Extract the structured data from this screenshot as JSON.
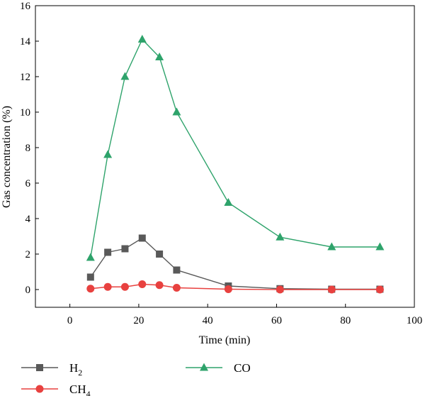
{
  "chart_data": {
    "type": "line",
    "xlabel": "Time (min)",
    "ylabel": "Gas concentration (%)",
    "xlim": [
      -10,
      100
    ],
    "ylim": [
      -1,
      16
    ],
    "x_ticks": [
      0,
      20,
      40,
      60,
      80,
      100
    ],
    "y_ticks": [
      0,
      2,
      4,
      6,
      8,
      10,
      12,
      14,
      16
    ],
    "grid": false,
    "legend_position": "bottom",
    "series": [
      {
        "name": "H",
        "name_subscript": "2",
        "marker": "square",
        "color": "#595959",
        "x": [
          6,
          11,
          16,
          21,
          26,
          31,
          46,
          61,
          76,
          90
        ],
        "y": [
          0.7,
          2.1,
          2.3,
          2.9,
          2.0,
          1.1,
          0.2,
          0.05,
          0.02,
          0.02
        ]
      },
      {
        "name": "CH",
        "name_subscript": "4",
        "marker": "circle",
        "color": "#e8413f",
        "x": [
          6,
          11,
          16,
          21,
          26,
          31,
          46,
          61,
          76,
          90
        ],
        "y": [
          0.05,
          0.15,
          0.15,
          0.3,
          0.25,
          0.1,
          0.02,
          0.0,
          0.0,
          0.0
        ]
      },
      {
        "name": "CO",
        "name_subscript": "",
        "marker": "triangle",
        "color": "#2ea36b",
        "x": [
          6,
          11,
          16,
          21,
          26,
          31,
          46,
          61,
          76,
          90
        ],
        "y": [
          1.8,
          7.6,
          12.0,
          14.1,
          13.1,
          10.0,
          4.9,
          2.95,
          2.4,
          2.4
        ]
      }
    ]
  }
}
